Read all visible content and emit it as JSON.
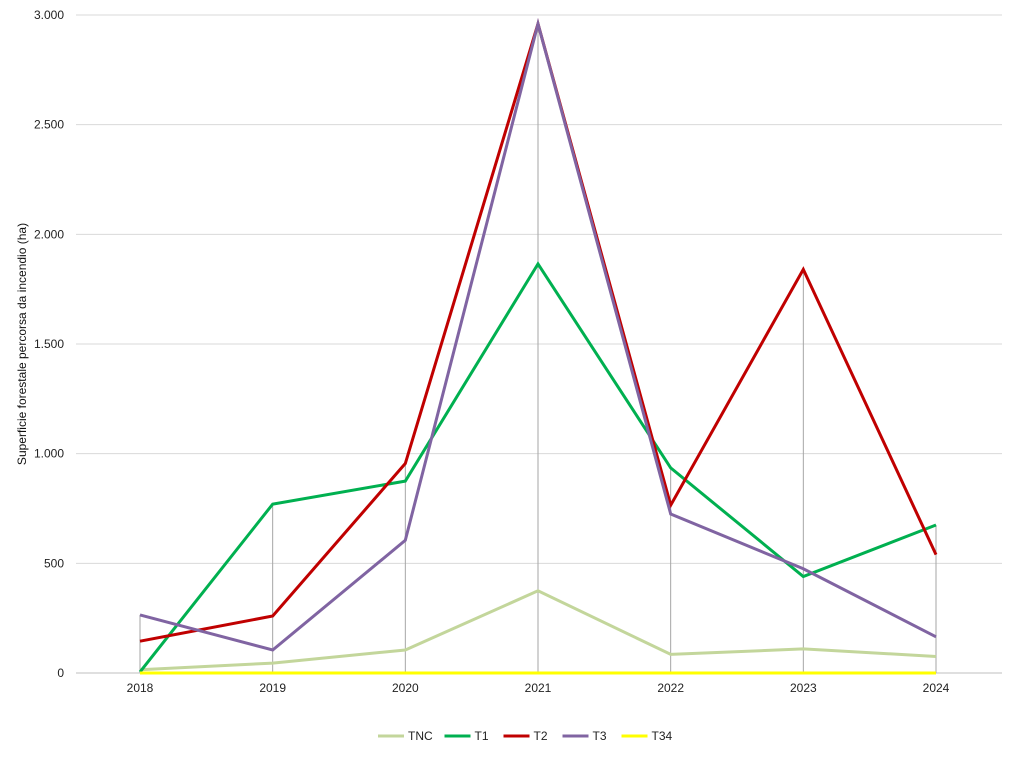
{
  "chart_data": {
    "type": "line",
    "title": "",
    "xlabel": "",
    "ylabel": "Superficie forestale percorsa da incendio (ha)",
    "categories": [
      "2018",
      "2019",
      "2020",
      "2021",
      "2022",
      "2023",
      "2024"
    ],
    "ylim": [
      0,
      3000
    ],
    "yticks": [
      0,
      500,
      1000,
      1500,
      2000,
      2500,
      3000
    ],
    "ytick_labels": [
      "0",
      "500",
      "1.000",
      "1.500",
      "2.000",
      "2.500",
      "3.000"
    ],
    "grid": "horizontal",
    "drop_lines": true,
    "legend_position": "bottom",
    "series": [
      {
        "name": "TNC",
        "color": "#c3d69b",
        "values": [
          15,
          45,
          105,
          375,
          85,
          110,
          75
        ]
      },
      {
        "name": "T1",
        "color": "#00b050",
        "values": [
          5,
          770,
          875,
          1865,
          935,
          440,
          675
        ]
      },
      {
        "name": "T2",
        "color": "#c00000",
        "values": [
          145,
          260,
          955,
          2960,
          765,
          1840,
          540
        ]
      },
      {
        "name": "T3",
        "color": "#8064a2",
        "values": [
          265,
          105,
          605,
          2960,
          725,
          475,
          165
        ]
      },
      {
        "name": "T34",
        "color": "#ffff00",
        "values": [
          0,
          0,
          0,
          0,
          0,
          0,
          0
        ]
      }
    ]
  }
}
